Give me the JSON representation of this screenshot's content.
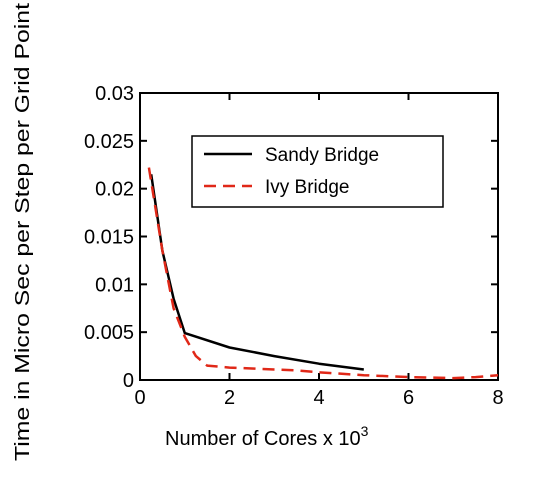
{
  "chart_data": {
    "type": "line",
    "title": "",
    "xlabel": "Number of Cores x 10",
    "xlabel_superscript": "3",
    "ylabel": "Time in Micro Sec per Step per Grid Point",
    "xlim": [
      0,
      8
    ],
    "ylim": [
      0,
      0.03
    ],
    "x_ticks": [
      0,
      2,
      4,
      6,
      8
    ],
    "x_tick_labels": [
      "0",
      "2",
      "4",
      "6",
      "8"
    ],
    "y_ticks": [
      0,
      0.005,
      0.01,
      0.015,
      0.02,
      0.025,
      0.03
    ],
    "y_tick_labels": [
      "0",
      "0.005",
      "0.01",
      "0.015",
      "0.02",
      "0.025",
      "0.03"
    ],
    "grid": false,
    "legend_position": "top-right",
    "series": [
      {
        "name": "Sandy Bridge",
        "color": "#000000",
        "dash": "solid",
        "x": [
          0.25,
          0.5,
          0.75,
          1.0,
          2.0,
          3.0,
          4.0,
          5.0
        ],
        "y": [
          0.0215,
          0.0135,
          0.0085,
          0.0049,
          0.0034,
          0.0025,
          0.0017,
          0.0011
        ]
      },
      {
        "name": "Ivy Bridge",
        "color": "#e02818",
        "dash": "dashed",
        "x": [
          0.2,
          0.5,
          0.75,
          1.0,
          1.25,
          1.5,
          2.0,
          2.5,
          3.0,
          3.5,
          4.0,
          5.0,
          6.0,
          7.0,
          7.5,
          8.0
        ],
        "y": [
          0.0222,
          0.0135,
          0.0075,
          0.0045,
          0.0025,
          0.0015,
          0.0013,
          0.0012,
          0.0011,
          0.001,
          0.0008,
          0.0005,
          0.0003,
          0.0002,
          0.0003,
          0.0005
        ]
      }
    ]
  }
}
